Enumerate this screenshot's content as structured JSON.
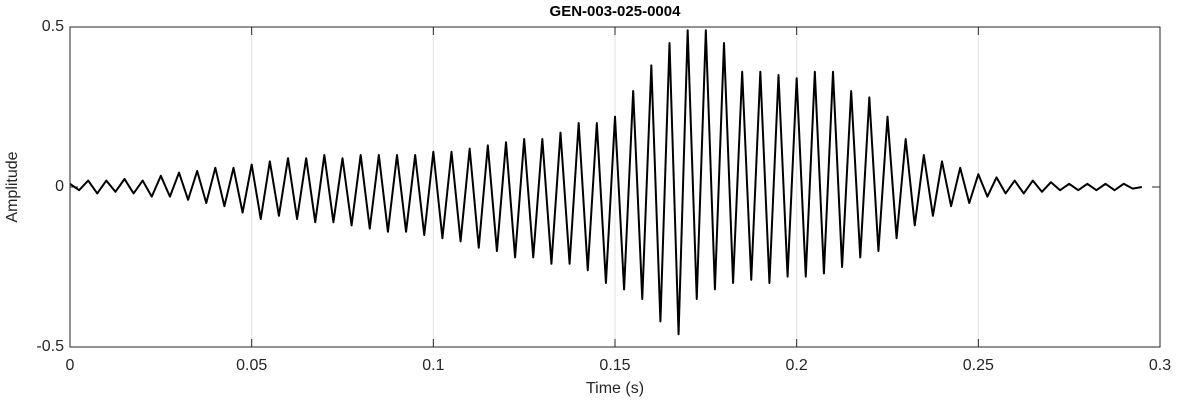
{
  "chart_data": {
    "type": "line",
    "title": "GEN-003-025-0004",
    "x_label": "Time (s)",
    "y_label": "Amplitude",
    "x": [
      0,
      0.0025,
      0.005,
      0.0075,
      0.01,
      0.0125,
      0.015,
      0.0175,
      0.02,
      0.0225,
      0.025,
      0.0275,
      0.03,
      0.0325,
      0.035,
      0.0375,
      0.04,
      0.0425,
      0.045,
      0.0475,
      0.05,
      0.0525,
      0.055,
      0.0575,
      0.06,
      0.0625,
      0.065,
      0.0675,
      0.07,
      0.0725,
      0.075,
      0.0775,
      0.08,
      0.0825,
      0.085,
      0.0875,
      0.09,
      0.0925,
      0.095,
      0.0975,
      0.1,
      0.1025,
      0.105,
      0.1075,
      0.11,
      0.1125,
      0.115,
      0.1175,
      0.12,
      0.1225,
      0.125,
      0.1275,
      0.13,
      0.1325,
      0.135,
      0.1375,
      0.14,
      0.1425,
      0.145,
      0.1475,
      0.15,
      0.1525,
      0.155,
      0.1575,
      0.16,
      0.1625,
      0.165,
      0.1675,
      0.17,
      0.1725,
      0.175,
      0.1775,
      0.18,
      0.1825,
      0.185,
      0.1875,
      0.19,
      0.1925,
      0.195,
      0.1975,
      0.2,
      0.2025,
      0.205,
      0.2075,
      0.21,
      0.2125,
      0.215,
      0.2175,
      0.22,
      0.2225,
      0.225,
      0.2275,
      0.23,
      0.2325,
      0.235,
      0.2375,
      0.24,
      0.2425,
      0.245,
      0.2475,
      0.25,
      0.2525,
      0.255,
      0.2575,
      0.26,
      0.2625,
      0.265,
      0.2675,
      0.27,
      0.2725,
      0.275,
      0.2775,
      0.28,
      0.2825,
      0.285,
      0.2875,
      0.29,
      0.2925,
      0.295
    ],
    "series": [
      {
        "color": "#000000",
        "values": [
          0.01,
          -0.01,
          0.02,
          -0.02,
          0.02,
          -0.015,
          0.025,
          -0.02,
          0.02,
          -0.03,
          0.035,
          -0.03,
          0.045,
          -0.04,
          0.05,
          -0.05,
          0.06,
          -0.06,
          0.06,
          -0.08,
          0.07,
          -0.1,
          0.08,
          -0.09,
          0.09,
          -0.1,
          0.09,
          -0.11,
          0.1,
          -0.11,
          0.09,
          -0.12,
          0.1,
          -0.13,
          0.1,
          -0.14,
          0.1,
          -0.14,
          0.1,
          -0.15,
          0.11,
          -0.16,
          0.11,
          -0.17,
          0.12,
          -0.19,
          0.13,
          -0.2,
          0.14,
          -0.22,
          0.15,
          -0.22,
          0.15,
          -0.24,
          0.17,
          -0.24,
          0.2,
          -0.26,
          0.2,
          -0.3,
          0.22,
          -0.32,
          0.3,
          -0.35,
          0.38,
          -0.42,
          0.45,
          -0.46,
          0.49,
          -0.35,
          0.49,
          -0.32,
          0.45,
          -0.3,
          0.36,
          -0.29,
          0.36,
          -0.3,
          0.35,
          -0.28,
          0.34,
          -0.28,
          0.36,
          -0.27,
          0.36,
          -0.25,
          0.3,
          -0.22,
          0.28,
          -0.2,
          0.22,
          -0.16,
          0.15,
          -0.12,
          0.1,
          -0.09,
          0.08,
          -0.06,
          0.06,
          -0.05,
          0.04,
          -0.03,
          0.03,
          -0.02,
          0.02,
          -0.02,
          0.02,
          -0.015,
          0.015,
          -0.01,
          0.01,
          -0.01,
          0.01,
          -0.01,
          0.01,
          -0.01,
          0.01,
          -0.005,
          0
        ]
      }
    ],
    "xlim": [
      0,
      0.3
    ],
    "xticks": [
      0,
      0.05,
      0.1,
      0.15,
      0.2,
      0.25,
      0.3
    ],
    "ylim": [
      -0.5,
      0.5
    ],
    "yticks": [
      -0.5,
      0,
      0.5
    ],
    "xgrid": true,
    "ygrid": false
  }
}
